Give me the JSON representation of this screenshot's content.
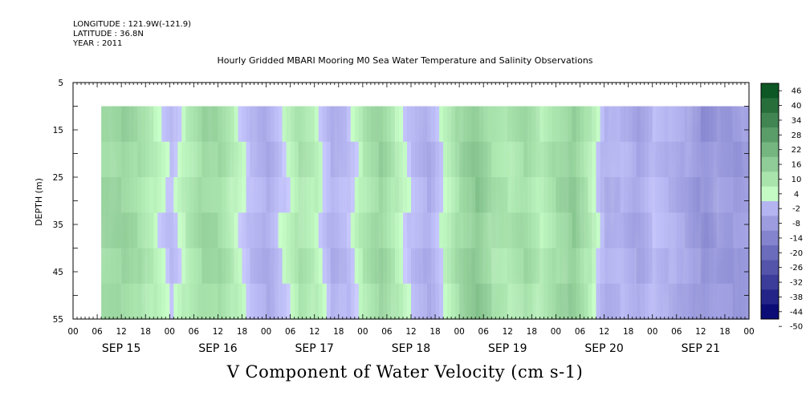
{
  "header": {
    "longitude": "LONGITUDE : 121.9W(-121.9)",
    "latitude": "LATITUDE : 36.8N",
    "year": "YEAR : 2011"
  },
  "chart_data": {
    "type": "heatmap",
    "title": "Hourly Gridded MBARI Mooring M0 Sea Water Temperature and Salinity Observations",
    "xlabel": "V Component of Water Velocity (cm s-1)",
    "ylabel": "DEPTH (m)",
    "ylim": [
      5,
      55
    ],
    "y_reversed": true,
    "y_ticks": [
      5,
      15,
      25,
      35,
      45,
      55
    ],
    "xlim_hours": [
      0,
      168
    ],
    "x_hour_labels": [
      "00",
      "06",
      "12",
      "18",
      "00",
      "06",
      "12",
      "18",
      "00",
      "06",
      "12",
      "18",
      "00",
      "06",
      "12",
      "18",
      "00",
      "06",
      "12",
      "18",
      "00",
      "06",
      "12",
      "18",
      "00",
      "06",
      "12",
      "18",
      "00"
    ],
    "date_labels": [
      "SEP 15",
      "SEP 16",
      "SEP 17",
      "SEP 18",
      "SEP 19",
      "SEP 20",
      "SEP 21"
    ],
    "data_extent": {
      "start_hour": 7,
      "end_hour": 168,
      "top_depth": 10,
      "bottom_depth": 55
    },
    "colorbar": {
      "levels": [
        -50,
        -44,
        -38,
        -32,
        -26,
        -20,
        -14,
        -8,
        -2,
        4,
        10,
        16,
        22,
        28,
        34,
        40,
        46
      ],
      "labels": [
        "46",
        "40",
        "34",
        "28",
        "22",
        "16",
        "10",
        "4",
        "-2",
        "-8",
        "-14",
        "-20",
        "-26",
        "-32",
        "-38",
        "-44",
        "-50"
      ],
      "negative_color_low": "#00006e",
      "negative_color_high": "#c8c8ff",
      "positive_color_low": "#c8ffc8",
      "positive_color_high": "#004b19"
    },
    "velocity_profile": [
      {
        "hour": 7,
        "v": 10
      },
      {
        "hour": 12,
        "v": 11
      },
      {
        "hour": 16,
        "v": 8
      },
      {
        "hour": 20,
        "v": 3
      },
      {
        "hour": 24,
        "v": -3
      },
      {
        "hour": 28,
        "v": 5
      },
      {
        "hour": 32,
        "v": 10
      },
      {
        "hour": 36,
        "v": 9
      },
      {
        "hour": 40,
        "v": 3
      },
      {
        "hour": 44,
        "v": -4
      },
      {
        "hour": 48,
        "v": -7
      },
      {
        "hour": 52,
        "v": 0
      },
      {
        "hour": 56,
        "v": 7
      },
      {
        "hour": 60,
        "v": 3
      },
      {
        "hour": 64,
        "v": -6
      },
      {
        "hour": 68,
        "v": -3
      },
      {
        "hour": 72,
        "v": 6
      },
      {
        "hour": 76,
        "v": 11
      },
      {
        "hour": 80,
        "v": 4
      },
      {
        "hour": 84,
        "v": -3
      },
      {
        "hour": 88,
        "v": -7
      },
      {
        "hour": 92,
        "v": 2
      },
      {
        "hour": 96,
        "v": 10
      },
      {
        "hour": 100,
        "v": 14
      },
      {
        "hour": 104,
        "v": 8
      },
      {
        "hour": 108,
        "v": 6
      },
      {
        "hour": 112,
        "v": 9
      },
      {
        "hour": 116,
        "v": 4
      },
      {
        "hour": 120,
        "v": 9
      },
      {
        "hour": 124,
        "v": 13
      },
      {
        "hour": 128,
        "v": 5
      },
      {
        "hour": 132,
        "v": -7
      },
      {
        "hour": 136,
        "v": -5
      },
      {
        "hour": 140,
        "v": -9
      },
      {
        "hour": 144,
        "v": -3
      },
      {
        "hour": 148,
        "v": -6
      },
      {
        "hour": 152,
        "v": -9
      },
      {
        "hour": 156,
        "v": -14
      },
      {
        "hour": 160,
        "v": -11
      },
      {
        "hour": 164,
        "v": -12
      },
      {
        "hour": 168,
        "v": -10
      }
    ]
  }
}
